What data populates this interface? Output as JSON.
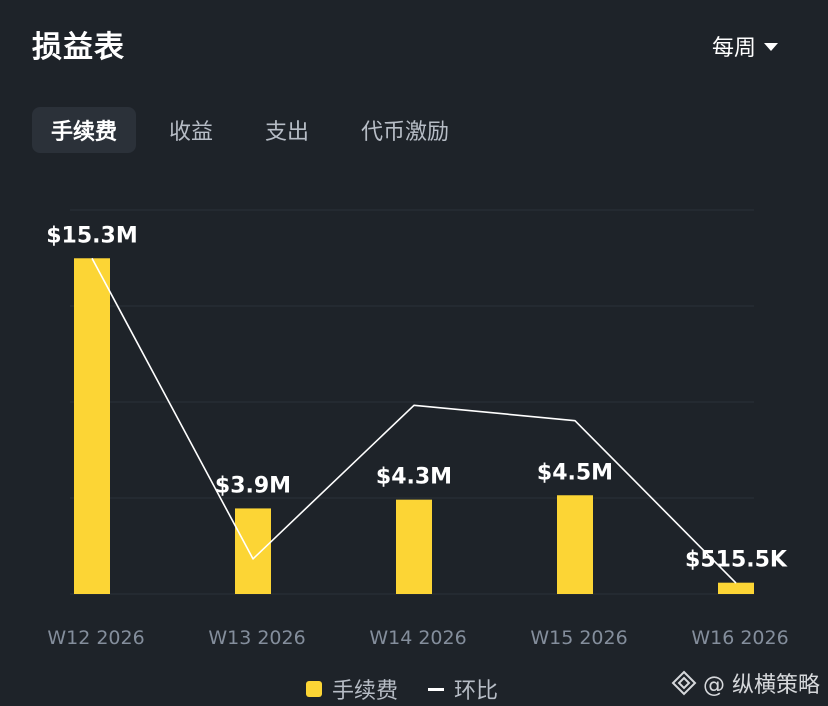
{
  "header": {
    "title": "损益表",
    "period_label": "每周"
  },
  "tabs": [
    {
      "label": "手续费",
      "active": true
    },
    {
      "label": "收益",
      "active": false
    },
    {
      "label": "支出",
      "active": false
    },
    {
      "label": "代币激励",
      "active": false
    }
  ],
  "chart_data": {
    "type": "bar",
    "categories": [
      "W12 2026",
      "W13 2026",
      "W14 2026",
      "W15 2026",
      "W16 2026"
    ],
    "series": [
      {
        "name": "手续费",
        "kind": "bar",
        "values": [
          15.3,
          3.9,
          4.3,
          4.5,
          0.5155
        ],
        "labels": [
          "$15.3M",
          "$3.9M",
          "$4.3M",
          "$4.5M",
          "$515.5K"
        ],
        "color": "#fcd535"
      },
      {
        "name": "环比",
        "kind": "line",
        "values": [
          15.3,
          1.6,
          8.6,
          7.9,
          0.5
        ],
        "color": "#ffffff"
      }
    ],
    "ylim": [
      0,
      17.5
    ],
    "grid": true,
    "legend": "bottom"
  },
  "legend": {
    "bar_label": "手续费",
    "line_label": "环比"
  },
  "watermark": {
    "text": "@ 纵横策略"
  },
  "colors": {
    "background": "#1e2329",
    "accent": "#fcd535",
    "grid": "#2b3139",
    "axis_text": "#848e9c"
  }
}
